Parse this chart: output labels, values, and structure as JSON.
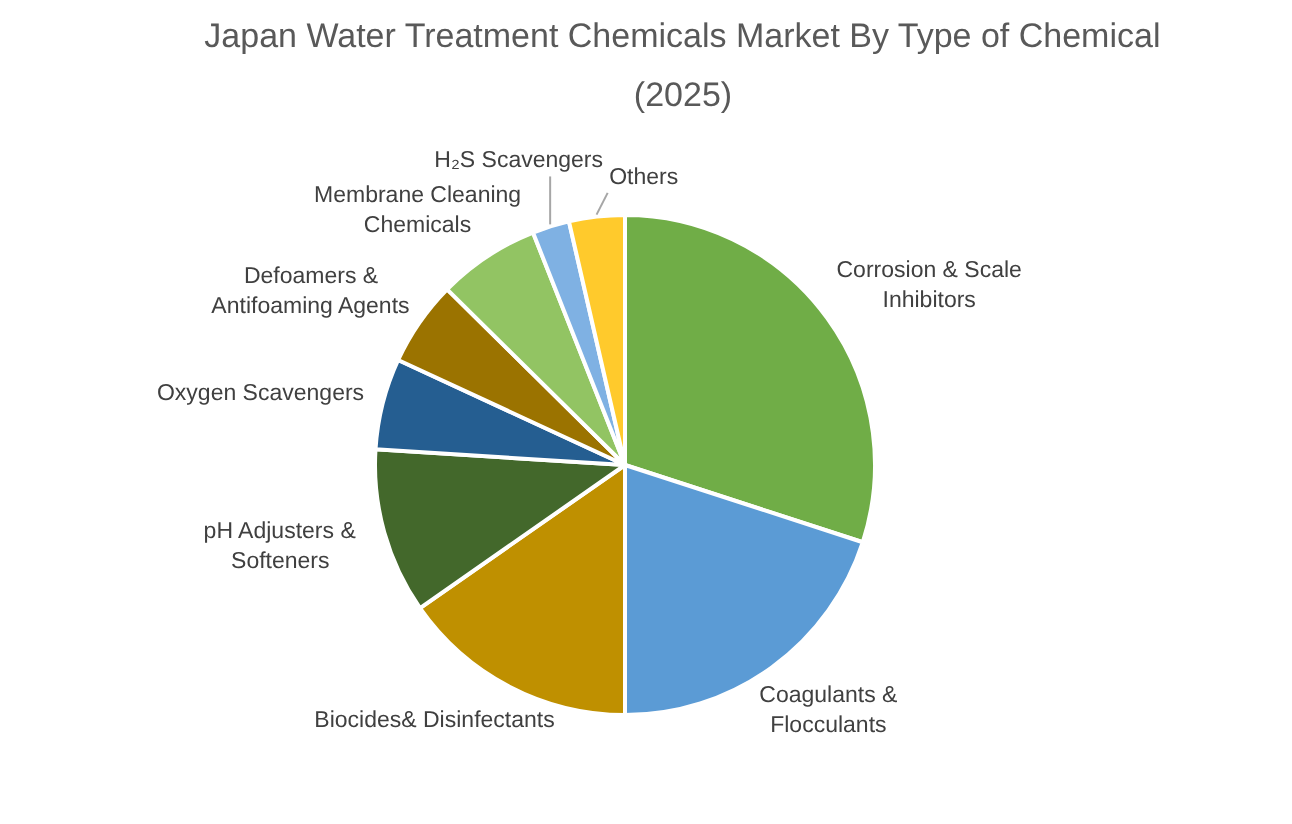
{
  "chart_data": {
    "type": "pie",
    "title": "Japan Water Treatment Chemicals Market By Type of Chemical (2025)",
    "categories": [
      "Corrosion & Scale Inhibitors",
      "Coagulants & Flocculants",
      "Biocides& Disinfectants",
      "pH Adjusters & Softeners",
      "Oxygen Scavengers",
      "Defoamers & Antifoaming Agents",
      "Membrane Cleaning Chemicals",
      "H₂S Scavengers",
      "Others"
    ],
    "values": [
      30,
      20,
      15.3,
      10.7,
      5.9,
      5.5,
      6.6,
      2.4,
      3.6
    ],
    "colors": [
      "#70ad47",
      "#5b9bd5",
      "#bf9000",
      "#43682b",
      "#255e91",
      "#9b7300",
      "#92c463",
      "#7fb1e3",
      "#ffca2c"
    ]
  }
}
